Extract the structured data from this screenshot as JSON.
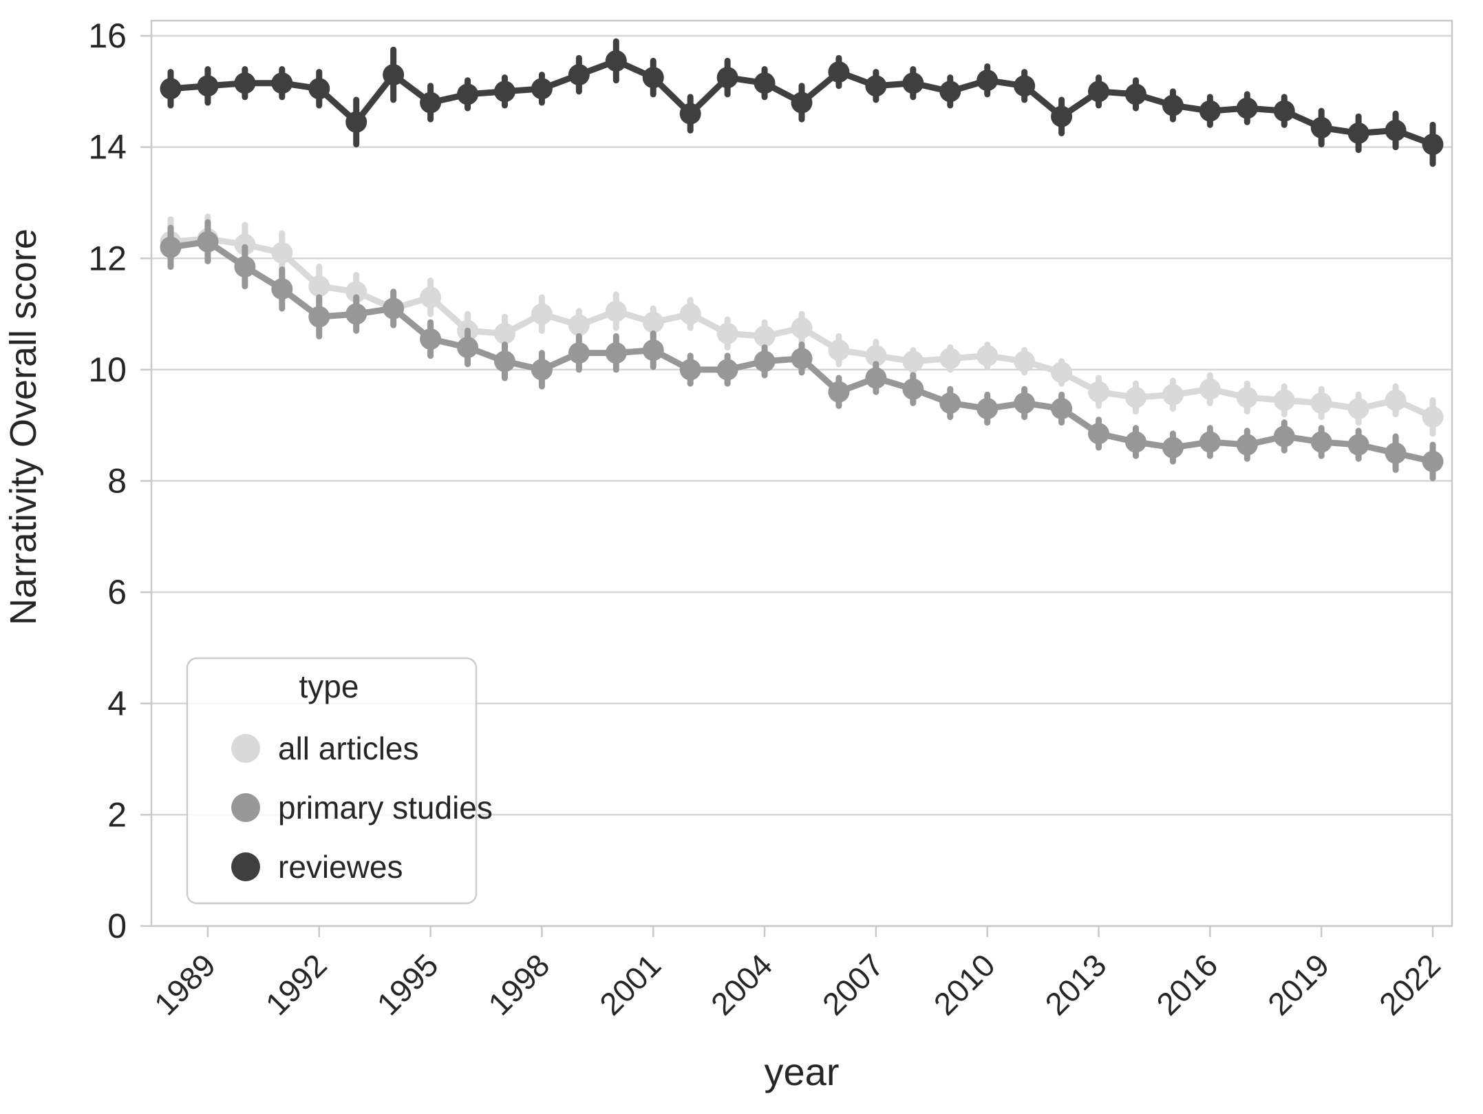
{
  "chart_data": {
    "type": "line",
    "title": "",
    "xlabel": "year",
    "ylabel": "Narrativity Overall score",
    "x": [
      1988,
      1989,
      1990,
      1991,
      1992,
      1993,
      1994,
      1995,
      1996,
      1997,
      1998,
      1999,
      2000,
      2001,
      2002,
      2003,
      2004,
      2005,
      2006,
      2007,
      2008,
      2009,
      2010,
      2011,
      2012,
      2013,
      2014,
      2015,
      2016,
      2017,
      2018,
      2019,
      2020,
      2021,
      2022
    ],
    "xticks": [
      1989,
      1992,
      1995,
      1998,
      2001,
      2004,
      2007,
      2010,
      2013,
      2016,
      2019,
      2022
    ],
    "yticks": [
      0,
      2,
      4,
      6,
      8,
      10,
      12,
      14,
      16
    ],
    "ylim": [
      0,
      16.2
    ],
    "grid": "horizontal-only",
    "marker": "circle-with-error-bars",
    "legend": {
      "title": "type",
      "position": "lower-left"
    },
    "series": [
      {
        "name": "all articles",
        "color": "#d9d9d9",
        "values": [
          12.3,
          12.35,
          12.25,
          12.1,
          11.5,
          11.4,
          11.1,
          11.3,
          10.7,
          10.65,
          11.0,
          10.8,
          11.05,
          10.85,
          11.0,
          10.65,
          10.6,
          10.75,
          10.35,
          10.25,
          10.15,
          10.2,
          10.25,
          10.15,
          9.95,
          9.6,
          9.5,
          9.55,
          9.65,
          9.5,
          9.45,
          9.4,
          9.3,
          9.45,
          9.15
        ],
        "errors": [
          0.4,
          0.4,
          0.35,
          0.35,
          0.35,
          0.3,
          0.3,
          0.3,
          0.3,
          0.3,
          0.3,
          0.25,
          0.3,
          0.25,
          0.25,
          0.25,
          0.25,
          0.25,
          0.25,
          0.25,
          0.2,
          0.2,
          0.2,
          0.2,
          0.2,
          0.25,
          0.25,
          0.25,
          0.25,
          0.25,
          0.25,
          0.25,
          0.25,
          0.25,
          0.3
        ]
      },
      {
        "name": "primary studies",
        "color": "#979797",
        "values": [
          12.2,
          12.3,
          11.85,
          11.45,
          10.95,
          11.0,
          11.1,
          10.55,
          10.4,
          10.15,
          10.0,
          10.3,
          10.3,
          10.35,
          10.0,
          10.0,
          10.15,
          10.2,
          9.6,
          9.85,
          9.65,
          9.4,
          9.3,
          9.4,
          9.3,
          8.85,
          8.7,
          8.6,
          8.7,
          8.65,
          8.8,
          8.7,
          8.65,
          8.5,
          8.35
        ],
        "errors": [
          0.35,
          0.35,
          0.35,
          0.35,
          0.35,
          0.3,
          0.3,
          0.3,
          0.3,
          0.3,
          0.3,
          0.3,
          0.3,
          0.3,
          0.25,
          0.25,
          0.25,
          0.25,
          0.25,
          0.25,
          0.25,
          0.25,
          0.25,
          0.25,
          0.25,
          0.25,
          0.25,
          0.25,
          0.25,
          0.25,
          0.25,
          0.25,
          0.25,
          0.3,
          0.3
        ]
      },
      {
        "name": "reviewes",
        "color": "#3f3f3f",
        "values": [
          15.05,
          15.1,
          15.15,
          15.15,
          15.05,
          14.45,
          15.3,
          14.8,
          14.95,
          15.0,
          15.05,
          15.3,
          15.55,
          15.25,
          14.6,
          15.25,
          15.15,
          14.8,
          15.35,
          15.1,
          15.15,
          15.0,
          15.2,
          15.1,
          14.55,
          15.0,
          14.95,
          14.75,
          14.65,
          14.7,
          14.65,
          14.35,
          14.25,
          14.3,
          14.05
        ],
        "errors": [
          0.3,
          0.3,
          0.25,
          0.25,
          0.3,
          0.4,
          0.45,
          0.3,
          0.25,
          0.25,
          0.25,
          0.3,
          0.35,
          0.3,
          0.3,
          0.3,
          0.25,
          0.3,
          0.25,
          0.25,
          0.25,
          0.25,
          0.25,
          0.25,
          0.3,
          0.25,
          0.25,
          0.25,
          0.25,
          0.25,
          0.25,
          0.3,
          0.3,
          0.3,
          0.35
        ]
      }
    ]
  },
  "colors": {
    "background": "#ffffff",
    "grid": "#d6d6d6",
    "spine": "#c9c9c9",
    "tick": "#c9c9c9",
    "text": "#262626",
    "legend_border": "#cccccc",
    "legend_background": "#ffffff"
  }
}
